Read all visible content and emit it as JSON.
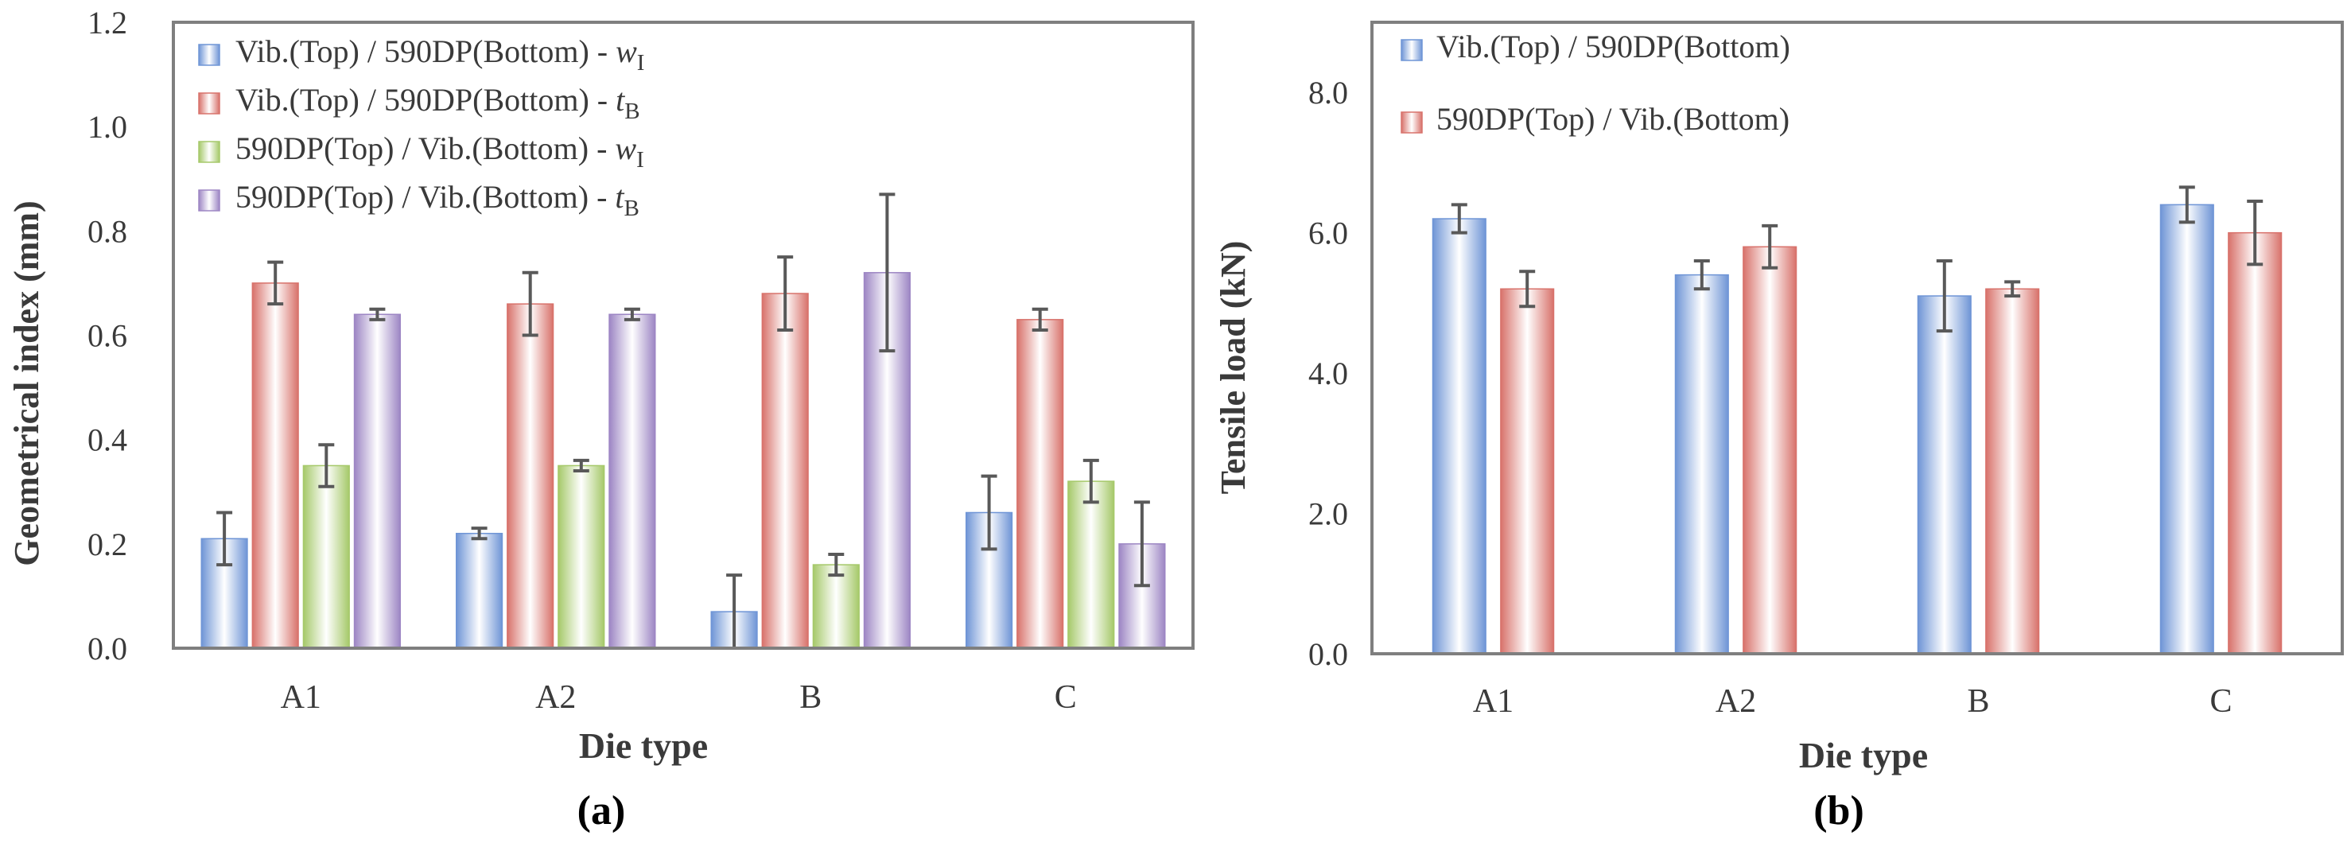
{
  "colors": {
    "blue": "#6f95d6",
    "red": "#d8726b",
    "green": "#a6c96a",
    "purple": "#9d86c4",
    "axis": "#7f7f7f",
    "errorbar": "#595959",
    "text": "#3a3a3a"
  },
  "chart_data": [
    {
      "type": "bar",
      "panel_label": "(a)",
      "xlabel": "Die type",
      "ylabel": "Geometrical index (mm)",
      "categories": [
        "A1",
        "A2",
        "B",
        "C"
      ],
      "ylim": [
        0,
        1.2
      ],
      "yticks": [
        "0.0",
        "0.2",
        "0.4",
        "0.6",
        "0.8",
        "1.0",
        "1.2"
      ],
      "tick_values": [
        0,
        0.2,
        0.4,
        0.6,
        0.8,
        1.0,
        1.2
      ],
      "grid": false,
      "legend_position": "top-left",
      "series": [
        {
          "name": "Vib.(Top) / 590DP(Bottom) - wI",
          "legend_main": "Vib.(Top) / 590DP(Bottom) - ",
          "legend_var": "w",
          "legend_sub": "I",
          "color": "#6f95d6",
          "values": [
            0.21,
            0.22,
            0.07,
            0.26
          ],
          "errors": [
            0.05,
            0.01,
            0.07,
            0.07
          ]
        },
        {
          "name": "Vib.(Top) / 590DP(Bottom) - tB",
          "legend_main": "Vib.(Top) / 590DP(Bottom) - ",
          "legend_var": "t",
          "legend_sub": "B",
          "color": "#d8726b",
          "values": [
            0.7,
            0.66,
            0.68,
            0.63
          ],
          "errors": [
            0.04,
            0.06,
            0.07,
            0.02
          ]
        },
        {
          "name": "590DP(Top) / Vib.(Bottom) - wI",
          "legend_main": "590DP(Top) / Vib.(Bottom) - ",
          "legend_var": "w",
          "legend_sub": "I",
          "color": "#a6c96a",
          "values": [
            0.35,
            0.35,
            0.16,
            0.32
          ],
          "errors": [
            0.04,
            0.01,
            0.02,
            0.04
          ]
        },
        {
          "name": "590DP(Top) / Vib.(Bottom) - tB",
          "legend_main": "590DP(Top) / Vib.(Bottom) - ",
          "legend_var": "t",
          "legend_sub": "B",
          "color": "#9d86c4",
          "values": [
            0.64,
            0.64,
            0.72,
            0.2
          ],
          "errors": [
            0.01,
            0.01,
            0.15,
            0.08
          ]
        }
      ]
    },
    {
      "type": "bar",
      "panel_label": "(b)",
      "xlabel": "Die type",
      "ylabel": "Tensile load (kN)",
      "categories": [
        "A1",
        "A2",
        "B",
        "C"
      ],
      "ylim": [
        0,
        9
      ],
      "yticks": [
        "0.0",
        "2.0",
        "4.0",
        "6.0",
        "8.0"
      ],
      "tick_values": [
        0,
        2,
        4,
        6,
        8
      ],
      "grid": false,
      "legend_position": "top-left",
      "series": [
        {
          "name": "Vib.(Top) / 590DP(Bottom)",
          "legend_main": "Vib.(Top) / 590DP(Bottom)",
          "legend_var": "",
          "legend_sub": "",
          "color": "#6f95d6",
          "values": [
            6.2,
            5.4,
            5.1,
            6.4
          ],
          "errors": [
            0.2,
            0.2,
            0.5,
            0.25
          ]
        },
        {
          "name": "590DP(Top) / Vib.(Bottom)",
          "legend_main": "590DP(Top) / Vib.(Bottom)",
          "legend_var": "",
          "legend_sub": "",
          "color": "#d8726b",
          "values": [
            5.2,
            5.8,
            5.2,
            6.0
          ],
          "errors": [
            0.25,
            0.3,
            0.1,
            0.45
          ]
        }
      ]
    }
  ]
}
